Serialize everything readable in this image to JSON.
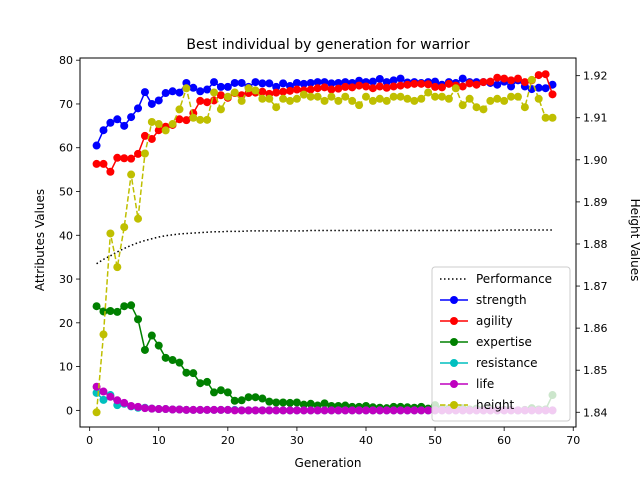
{
  "chart_data": {
    "type": "line",
    "title": "Best individual by generation for warrior",
    "xlabel": "Generation",
    "ylabel": "Attributes Values",
    "y2label": "Height Values",
    "xlim": [
      -1.4,
      70.4
    ],
    "ylim": [
      -3.8,
      80.5
    ],
    "y2lim": [
      1.8365,
      1.9242
    ],
    "xticks": [
      0,
      10,
      20,
      30,
      40,
      50,
      60,
      70
    ],
    "yticks": [
      0,
      10,
      20,
      30,
      40,
      50,
      60,
      70,
      80
    ],
    "y2ticks": [
      1.84,
      1.85,
      1.86,
      1.87,
      1.88,
      1.89,
      1.9,
      1.91,
      1.92
    ],
    "legend_position": "lower right",
    "grid": false,
    "series": [
      {
        "name": "Performance",
        "axis": "left",
        "color": "#000000",
        "style": "dotted",
        "marker": "none",
        "values": [
          33.5,
          34.5,
          35.3,
          36.2,
          37.0,
          37.7,
          38.3,
          38.8,
          39.2,
          39.6,
          39.9,
          40.1,
          40.3,
          40.4,
          40.5,
          40.6,
          40.7,
          40.8,
          40.8,
          40.9,
          40.9,
          40.9,
          41.0,
          41.0,
          41.0,
          41.0,
          41.0,
          41.0,
          41.0,
          41.0,
          41.0,
          41.1,
          41.1,
          41.1,
          41.1,
          41.1,
          41.1,
          41.1,
          41.1,
          41.1,
          41.1,
          41.1,
          41.1,
          41.1,
          41.1,
          41.1,
          41.1,
          41.1,
          41.1,
          41.1,
          41.1,
          41.1,
          41.1,
          41.1,
          41.1,
          41.1,
          41.1,
          41.1,
          41.1,
          41.2,
          41.2,
          41.2,
          41.2,
          41.2,
          41.2,
          41.2,
          41.2
        ]
      },
      {
        "name": "strength",
        "axis": "left",
        "color": "#0000ff",
        "style": "solid",
        "marker": "o",
        "values": [
          60.5,
          64.0,
          65.7,
          66.5,
          65.0,
          67.0,
          69.0,
          72.7,
          70.0,
          70.8,
          72.5,
          72.9,
          72.6,
          74.8,
          73.7,
          72.9,
          73.3,
          75.0,
          73.9,
          73.9,
          74.8,
          74.8,
          73.9,
          75.0,
          74.7,
          74.7,
          73.9,
          74.7,
          74.1,
          74.8,
          74.6,
          74.8,
          75.0,
          75.0,
          74.7,
          74.8,
          75.0,
          74.8,
          75.3,
          75.0,
          75.1,
          75.7,
          75.0,
          75.4,
          75.8,
          74.9,
          75.0,
          74.8,
          75.0,
          75.1,
          74.4,
          75.0,
          74.8,
          75.8,
          75.0,
          75.0,
          75.0,
          74.8,
          74.4,
          75.1,
          74.0,
          75.4,
          74.0,
          73.4,
          73.7,
          73.6,
          74.4
        ]
      },
      {
        "name": "agility",
        "axis": "left",
        "color": "#ff0000",
        "style": "solid",
        "marker": "o",
        "values": [
          56.3,
          56.3,
          54.5,
          57.7,
          57.6,
          57.5,
          58.6,
          62.7,
          62.0,
          64.0,
          64.8,
          65.2,
          66.5,
          66.3,
          67.9,
          70.7,
          70.4,
          70.8,
          72.0,
          71.4,
          72.5,
          72.0,
          72.5,
          72.6,
          72.8,
          72.3,
          72.6,
          72.8,
          73.0,
          73.3,
          73.1,
          73.3,
          73.6,
          73.8,
          73.3,
          73.5,
          73.9,
          73.8,
          74.2,
          74.0,
          73.6,
          74.0,
          73.7,
          74.0,
          74.2,
          74.4,
          74.6,
          74.6,
          74.5,
          73.9,
          73.8,
          74.6,
          74.2,
          74.0,
          74.7,
          74.4,
          75.0,
          75.1,
          76.0,
          75.8,
          75.4,
          75.8,
          75.0,
          75.4,
          76.6,
          76.8,
          72.2
        ]
      },
      {
        "name": "expertise",
        "axis": "left",
        "color": "#008000",
        "style": "solid",
        "marker": "o",
        "values": [
          23.8,
          22.6,
          22.7,
          22.5,
          23.8,
          24.0,
          20.8,
          13.8,
          17.1,
          14.8,
          12.0,
          11.5,
          10.9,
          8.6,
          8.5,
          6.2,
          6.5,
          4.1,
          4.6,
          4.1,
          2.2,
          2.3,
          3.0,
          3.0,
          2.7,
          2.0,
          1.8,
          1.8,
          1.7,
          1.8,
          1.3,
          1.5,
          1.1,
          1.6,
          1.0,
          1.0,
          1.1,
          0.8,
          0.8,
          1.0,
          0.7,
          0.6,
          0.5,
          0.8,
          0.8,
          0.7,
          0.6,
          0.8,
          0.4,
          1.2,
          0.4,
          0.4,
          0.3,
          0.5,
          0.2,
          0.4,
          0.2,
          0.3,
          0.0,
          0.1,
          0.1,
          0.0,
          0.1,
          0.5,
          0.2,
          0.2,
          3.5
        ]
      },
      {
        "name": "resistance",
        "axis": "left",
        "color": "#00bfbf",
        "style": "solid",
        "marker": "o",
        "values": [
          4.0,
          2.4,
          3.5,
          1.2,
          1.5,
          0.9,
          0.6,
          0.6,
          0.4,
          0.3,
          0.3,
          0.2,
          0.2,
          0.1,
          0.1,
          0.1,
          0.1,
          0.1,
          0.1,
          0.1,
          0.1,
          0.0,
          0.0,
          0.0,
          0.0,
          0.0,
          0.0,
          0.0,
          0.0,
          0.0,
          0.0,
          0.0,
          0.0,
          0.0,
          0.0,
          0.0,
          0.0,
          0.0,
          0.0,
          0.0,
          0.0,
          0.0,
          0.0,
          0.0,
          0.0,
          0.0,
          0.0,
          0.0,
          0.0,
          0.0,
          0.0,
          0.0,
          0.0,
          0.0,
          0.0,
          0.0,
          0.0,
          0.0,
          0.0,
          0.0,
          0.0,
          0.0,
          0.0,
          0.0,
          0.0,
          0.0,
          0.0
        ]
      },
      {
        "name": "life",
        "axis": "left",
        "color": "#bf00bf",
        "style": "solid",
        "marker": "o",
        "values": [
          5.4,
          4.3,
          3.1,
          2.3,
          1.7,
          1.0,
          0.8,
          0.5,
          0.4,
          0.3,
          0.3,
          0.2,
          0.2,
          0.1,
          0.1,
          0.1,
          0.1,
          0.1,
          0.1,
          0.1,
          0.0,
          0.0,
          0.0,
          0.0,
          0.0,
          0.0,
          0.0,
          0.0,
          0.0,
          0.0,
          0.0,
          0.0,
          0.0,
          0.0,
          0.0,
          0.0,
          0.0,
          0.0,
          0.0,
          0.0,
          0.0,
          0.0,
          0.0,
          0.0,
          0.0,
          0.0,
          0.0,
          0.0,
          0.0,
          0.0,
          0.0,
          0.0,
          0.0,
          0.0,
          0.0,
          0.0,
          0.0,
          0.0,
          0.0,
          0.0,
          0.0,
          0.0,
          0.0,
          0.0,
          0.0,
          0.0,
          0.0
        ]
      },
      {
        "name": "height",
        "axis": "right",
        "color": "#bfbf00",
        "style": "dashed",
        "marker": "o",
        "values": [
          1.84,
          1.8585,
          1.8825,
          1.8745,
          1.884,
          1.8965,
          1.886,
          1.9015,
          1.909,
          1.9085,
          1.907,
          1.9085,
          1.912,
          1.917,
          1.91,
          1.9095,
          1.9095,
          1.916,
          1.912,
          1.915,
          1.916,
          1.914,
          1.917,
          1.9165,
          1.9145,
          1.9145,
          1.9125,
          1.9145,
          1.914,
          1.9145,
          1.9155,
          1.915,
          1.915,
          1.914,
          1.915,
          1.914,
          1.915,
          1.914,
          1.913,
          1.915,
          1.914,
          1.9145,
          1.914,
          1.915,
          1.915,
          1.9145,
          1.914,
          1.9145,
          1.916,
          1.915,
          1.915,
          1.9145,
          1.917,
          1.913,
          1.9145,
          1.9125,
          1.912,
          1.914,
          1.9145,
          1.914,
          1.915,
          1.915,
          1.9125,
          1.919,
          1.9145,
          1.91,
          1.91
        ]
      }
    ]
  }
}
